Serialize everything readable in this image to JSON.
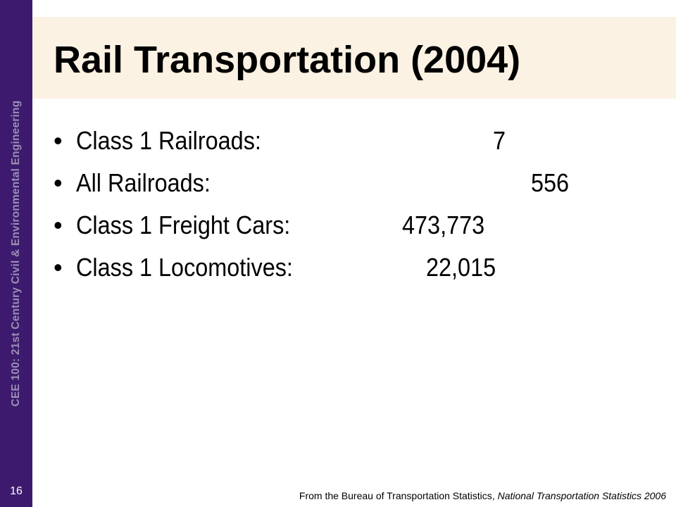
{
  "sidebar": {
    "course_text": "CEE 100: 21st Century Civil & Environmental Engineering",
    "slide_number": "16",
    "color": "#3d1a6e"
  },
  "title": "Rail Transportation (2004)",
  "bullets": [
    {
      "label": "Class 1 Railroads:",
      "value": "7"
    },
    {
      "label": "All Railroads:",
      "value": "556"
    },
    {
      "label": "Class 1 Freight Cars:",
      "value": "473,773"
    },
    {
      "label": "Class 1 Locomotives:",
      "value": "22,015"
    }
  ],
  "bullet_glyph": "•",
  "source": {
    "prefix": "From the Bureau of Transportation Statistics, ",
    "publication": "National Transportation Statistics 2006"
  }
}
